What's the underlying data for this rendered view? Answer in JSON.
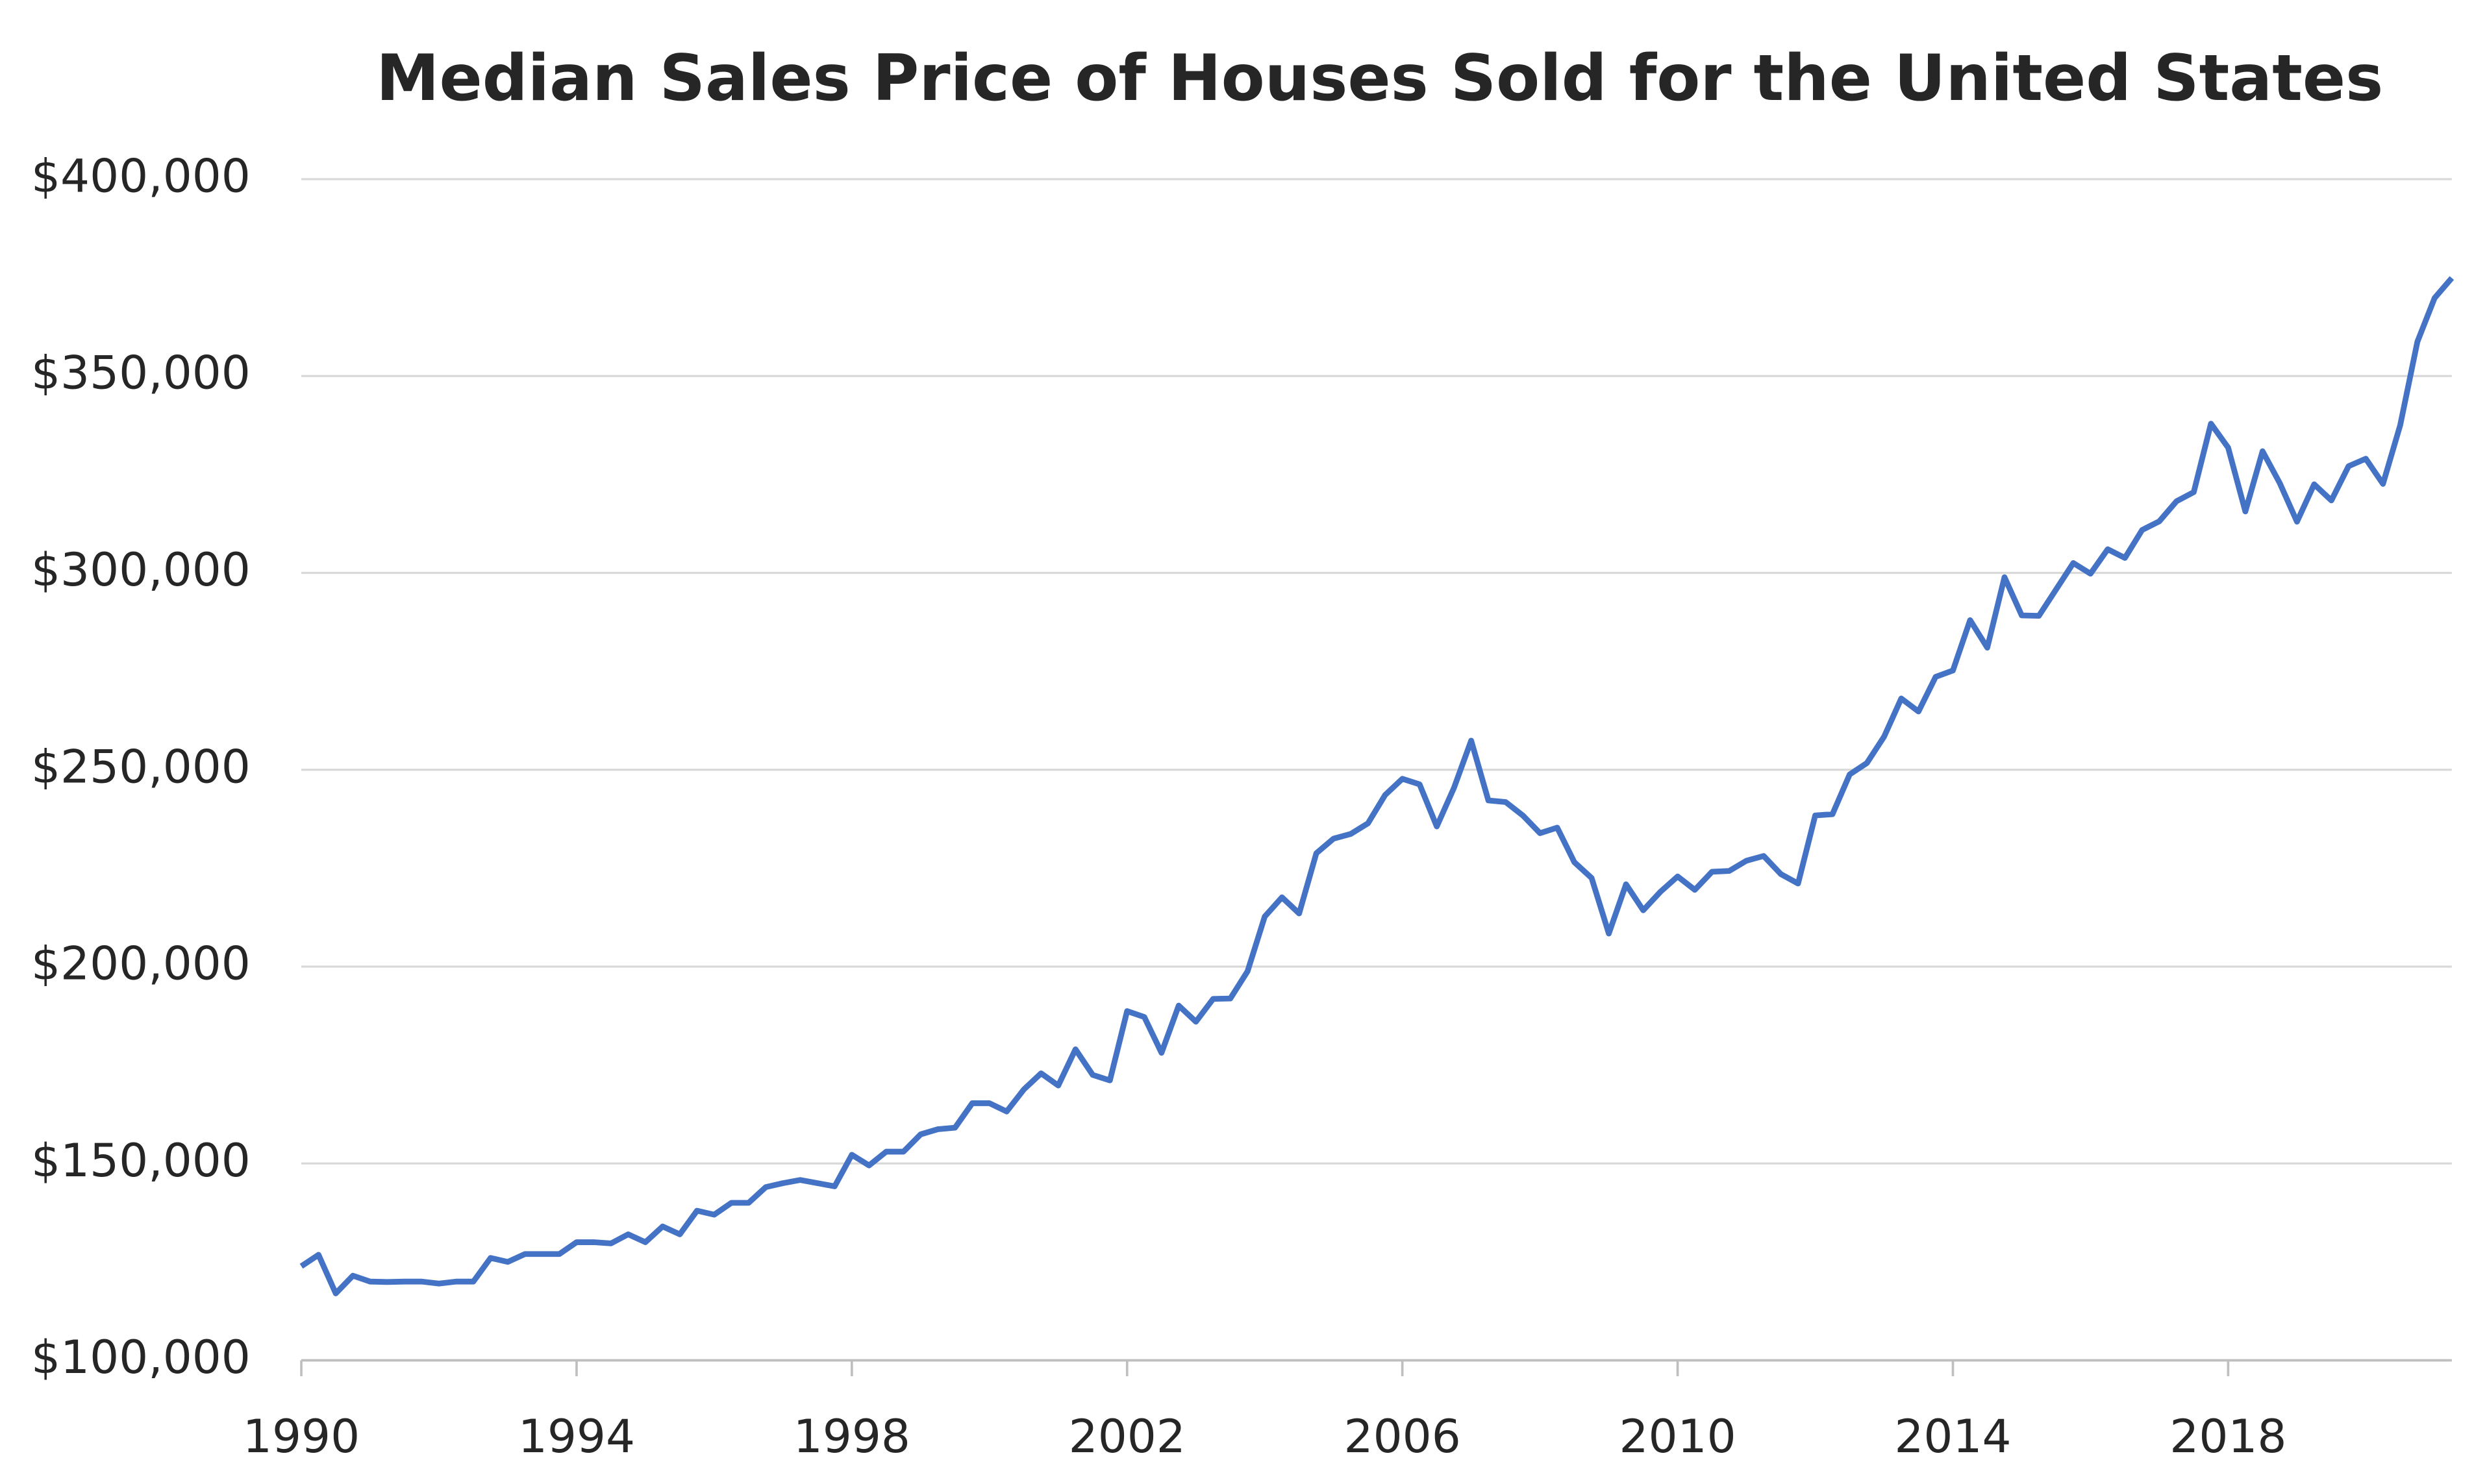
{
  "chart_data": {
    "type": "line",
    "title": "Median Sales Price of Houses Sold for the United States",
    "x": [
      1990,
      1990.25,
      1990.5,
      1990.75,
      1991,
      1991.25,
      1991.5,
      1991.75,
      1992,
      1992.25,
      1992.5,
      1992.75,
      1993,
      1993.25,
      1993.5,
      1993.75,
      1994,
      1994.25,
      1994.5,
      1994.75,
      1995,
      1995.25,
      1995.5,
      1995.75,
      1996,
      1996.25,
      1996.5,
      1996.75,
      1997,
      1997.25,
      1997.5,
      1997.75,
      1998,
      1998.25,
      1998.5,
      1998.75,
      1999,
      1999.25,
      1999.5,
      1999.75,
      2000,
      2000.25,
      2000.5,
      2000.75,
      2001,
      2001.25,
      2001.5,
      2001.75,
      2002,
      2002.25,
      2002.5,
      2002.75,
      2003,
      2003.25,
      2003.5,
      2003.75,
      2004,
      2004.25,
      2004.5,
      2004.75,
      2005,
      2005.25,
      2005.5,
      2005.75,
      2006,
      2006.25,
      2006.5,
      2006.75,
      2007,
      2007.25,
      2007.5,
      2007.75,
      2008,
      2008.25,
      2008.5,
      2008.75,
      2009,
      2009.25,
      2009.5,
      2009.75,
      2010,
      2010.25,
      2010.5,
      2010.75,
      2011,
      2011.25,
      2011.5,
      2011.75,
      2012,
      2012.25,
      2012.5,
      2012.75,
      2013,
      2013.25,
      2013.5,
      2013.75,
      2014,
      2014.25,
      2014.5,
      2014.75,
      2015,
      2015.25,
      2015.5,
      2015.75,
      2016,
      2016.25,
      2016.5,
      2016.75,
      2017,
      2017.25,
      2017.5,
      2017.75,
      2018,
      2018.25,
      2018.5,
      2018.75,
      2019,
      2019.25,
      2019.5,
      2019.75,
      2020,
      2020.25,
      2020.5,
      2020.75,
      2021,
      2021.25
    ],
    "series": [
      {
        "color": "#4472c4",
        "values": [
          123900,
          126800,
          117000,
          121500,
          120000,
          119900,
          120000,
          120000,
          119500,
          120000,
          120000,
          126000,
          125000,
          127000,
          127000,
          127000,
          130000,
          130000,
          129700,
          132000,
          130000,
          134000,
          132000,
          138000,
          137000,
          140000,
          140000,
          144000,
          145000,
          145800,
          145000,
          144200,
          152200,
          149500,
          153000,
          153000,
          157400,
          158700,
          159100,
          165300,
          165300,
          163200,
          168800,
          172900,
          169800,
          179000,
          172500,
          171100,
          188700,
          187200,
          178100,
          190100,
          186000,
          191800,
          191900,
          198800,
          212700,
          217600,
          213500,
          228800,
          232500,
          233700,
          236400,
          243600,
          247700,
          246300,
          235600,
          245400,
          257400,
          242200,
          241800,
          238400,
          233900,
          235300,
          226500,
          222500,
          208400,
          220900,
          214300,
          219000,
          222900,
          219500,
          224100,
          224300,
          226900,
          228100,
          223500,
          221100,
          238400,
          238700,
          248800,
          251700,
          258400,
          268100,
          264800,
          273600,
          275200,
          288000,
          281000,
          298900,
          289200,
          289100,
          295800,
          302500,
          299800,
          306000,
          303800,
          310900,
          313100,
          318200,
          320500,
          337900,
          331800,
          315600,
          330900,
          322800,
          313000,
          322500,
          318400,
          327100,
          329000,
          322600,
          337500,
          358700,
          369800,
          374900
        ]
      }
    ],
    "xlim": [
      1990,
      2021.25
    ],
    "xticks": [
      1990,
      1994,
      1998,
      2002,
      2006,
      2010,
      2014,
      2018
    ],
    "ylim": [
      100000,
      400000
    ],
    "yticks": [
      {
        "value": 100000,
        "label": "$100,000"
      },
      {
        "value": 150000,
        "label": "$150,000"
      },
      {
        "value": 200000,
        "label": "$200,000"
      },
      {
        "value": 250000,
        "label": "$250,000"
      },
      {
        "value": 300000,
        "label": "$300,000"
      },
      {
        "value": 350000,
        "label": "$350,000"
      },
      {
        "value": 400000,
        "label": "$400,000"
      }
    ],
    "grid": true
  }
}
